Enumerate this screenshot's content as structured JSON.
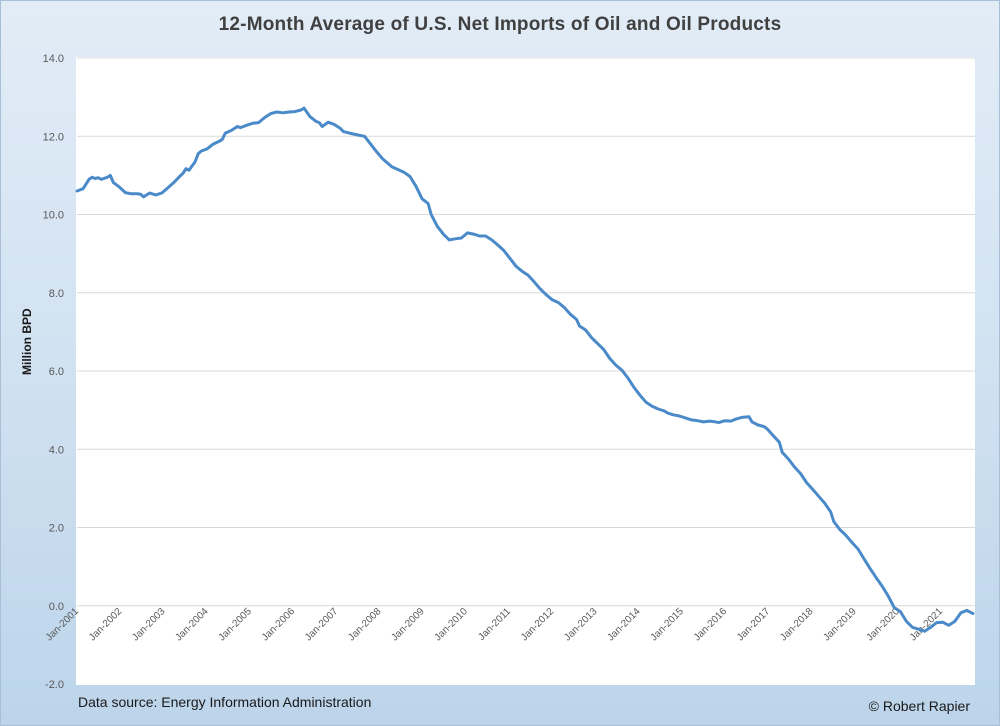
{
  "chart_data": {
    "type": "line",
    "title": "12-Month Average of U.S. Net Imports of Oil and Oil Products",
    "xlabel": "",
    "ylabel": "Million BPD",
    "ylim": [
      -2.0,
      14.0
    ],
    "yticks": [
      "14.0",
      "12.0",
      "10.0",
      "8.0",
      "6.0",
      "4.0",
      "2.0",
      "0.0",
      "-2.0"
    ],
    "ytick_values": [
      14,
      12,
      10,
      8,
      6,
      4,
      2,
      0,
      -2
    ],
    "xlim_months": [
      0,
      249
    ],
    "x_tick_labels": [
      "Jan-2001",
      "Jan-2002",
      "Jan-2003",
      "Jan-2004",
      "Jan-2005",
      "Jan-2006",
      "Jan-2007",
      "Jan-2008",
      "Jan-2009",
      "Jan-2010",
      "Jan-2011",
      "Jan-2012",
      "Jan-2013",
      "Jan-2014",
      "Jan-2015",
      "Jan-2016",
      "Jan-2017",
      "Jan-2018",
      "Jan-2019",
      "Jan-2020",
      "Jan-2021"
    ],
    "grid": true,
    "legend": "none",
    "series": [
      {
        "name": "U.S. Net Imports of Oil and Oil Products (12-month avg)",
        "color": "#4a8ac8",
        "x_unit": "months since Jan-2001",
        "points": [
          [
            0,
            10.6
          ],
          [
            2,
            10.66
          ],
          [
            4,
            10.9
          ],
          [
            5,
            10.95
          ],
          [
            6,
            10.92
          ],
          [
            7,
            10.94
          ],
          [
            8,
            10.9
          ],
          [
            10,
            10.95
          ],
          [
            11,
            11.0
          ],
          [
            12,
            10.82
          ],
          [
            14,
            10.7
          ],
          [
            16,
            10.56
          ],
          [
            18,
            10.53
          ],
          [
            20,
            10.53
          ],
          [
            21,
            10.52
          ],
          [
            22,
            10.45
          ],
          [
            24,
            10.55
          ],
          [
            26,
            10.5
          ],
          [
            28,
            10.55
          ],
          [
            30,
            10.68
          ],
          [
            32,
            10.82
          ],
          [
            34,
            10.98
          ],
          [
            35,
            11.05
          ],
          [
            36,
            11.17
          ],
          [
            37,
            11.13
          ],
          [
            39,
            11.35
          ],
          [
            40,
            11.55
          ],
          [
            41,
            11.62
          ],
          [
            43,
            11.68
          ],
          [
            45,
            11.8
          ],
          [
            47,
            11.87
          ],
          [
            48,
            11.92
          ],
          [
            49,
            12.08
          ],
          [
            51,
            12.15
          ],
          [
            53,
            12.25
          ],
          [
            54,
            12.22
          ],
          [
            56,
            12.28
          ],
          [
            58,
            12.33
          ],
          [
            60,
            12.35
          ],
          [
            62,
            12.48
          ],
          [
            64,
            12.58
          ],
          [
            66,
            12.62
          ],
          [
            68,
            12.6
          ],
          [
            70,
            12.62
          ],
          [
            72,
            12.63
          ],
          [
            74,
            12.67
          ],
          [
            75,
            12.72
          ],
          [
            77,
            12.5
          ],
          [
            79,
            12.38
          ],
          [
            80,
            12.35
          ],
          [
            81,
            12.25
          ],
          [
            83,
            12.36
          ],
          [
            85,
            12.3
          ],
          [
            87,
            12.2
          ],
          [
            88,
            12.12
          ],
          [
            90,
            12.08
          ],
          [
            93,
            12.03
          ],
          [
            95,
            12.0
          ],
          [
            97,
            11.8
          ],
          [
            99,
            11.6
          ],
          [
            101,
            11.42
          ],
          [
            104,
            11.22
          ],
          [
            106,
            11.15
          ],
          [
            108,
            11.08
          ],
          [
            110,
            10.97
          ],
          [
            112,
            10.72
          ],
          [
            114,
            10.4
          ],
          [
            116,
            10.28
          ],
          [
            117,
            10.0
          ],
          [
            119,
            9.7
          ],
          [
            121,
            9.5
          ],
          [
            123,
            9.35
          ],
          [
            125,
            9.38
          ],
          [
            127,
            9.4
          ],
          [
            129,
            9.53
          ],
          [
            131,
            9.5
          ],
          [
            133,
            9.45
          ],
          [
            135,
            9.45
          ],
          [
            137,
            9.35
          ],
          [
            139,
            9.22
          ],
          [
            141,
            9.08
          ],
          [
            143,
            8.88
          ],
          [
            145,
            8.68
          ],
          [
            147,
            8.55
          ],
          [
            149,
            8.45
          ],
          [
            151,
            8.28
          ],
          [
            153,
            8.1
          ],
          [
            155,
            7.95
          ],
          [
            157,
            7.82
          ],
          [
            159,
            7.75
          ],
          [
            161,
            7.62
          ],
          [
            163,
            7.45
          ],
          [
            165,
            7.32
          ],
          [
            166,
            7.15
          ],
          [
            168,
            7.05
          ],
          [
            170,
            6.85
          ],
          [
            172,
            6.7
          ],
          [
            174,
            6.55
          ],
          [
            176,
            6.32
          ],
          [
            178,
            6.15
          ],
          [
            180,
            6.02
          ],
          [
            182,
            5.82
          ],
          [
            184,
            5.58
          ],
          [
            186,
            5.38
          ],
          [
            188,
            5.2
          ],
          [
            190,
            5.1
          ],
          [
            192,
            5.03
          ],
          [
            194,
            4.98
          ],
          [
            195,
            4.93
          ],
          [
            197,
            4.88
          ],
          [
            199,
            4.85
          ],
          [
            201,
            4.8
          ],
          [
            203,
            4.75
          ],
          [
            205,
            4.73
          ],
          [
            207,
            4.7
          ],
          [
            209,
            4.72
          ],
          [
            211,
            4.7
          ],
          [
            212,
            4.68
          ],
          [
            214,
            4.73
          ],
          [
            216,
            4.72
          ],
          [
            218,
            4.78
          ],
          [
            220,
            4.82
          ],
          [
            222,
            4.83
          ],
          [
            223,
            4.7
          ],
          [
            225,
            4.62
          ],
          [
            227,
            4.58
          ],
          [
            228,
            4.52
          ],
          [
            230,
            4.35
          ],
          [
            232,
            4.18
          ],
          [
            233,
            3.92
          ],
          [
            235,
            3.75
          ],
          [
            237,
            3.55
          ],
          [
            239,
            3.38
          ],
          [
            241,
            3.15
          ],
          [
            243,
            2.98
          ],
          [
            245,
            2.8
          ],
          [
            247,
            2.62
          ],
          [
            249,
            2.4
          ]
        ],
        "points_tail": [
          [
            250,
            2.15
          ],
          [
            252,
            1.95
          ],
          [
            254,
            1.8
          ],
          [
            256,
            1.62
          ],
          [
            258,
            1.45
          ],
          [
            260,
            1.2
          ],
          [
            262,
            0.95
          ],
          [
            264,
            0.72
          ],
          [
            266,
            0.5
          ],
          [
            268,
            0.25
          ],
          [
            270,
            -0.05
          ],
          [
            272,
            -0.15
          ],
          [
            274,
            -0.4
          ],
          [
            276,
            -0.55
          ],
          [
            278,
            -0.6
          ],
          [
            280,
            -0.65
          ],
          [
            282,
            -0.55
          ],
          [
            284,
            -0.43
          ],
          [
            286,
            -0.42
          ],
          [
            288,
            -0.5
          ],
          [
            290,
            -0.4
          ],
          [
            292,
            -0.18
          ],
          [
            294,
            -0.12
          ],
          [
            296,
            -0.2
          ]
        ]
      }
    ]
  },
  "footer": {
    "source": "Data source: Energy Information Administration",
    "credit": "© Robert Rapier"
  }
}
